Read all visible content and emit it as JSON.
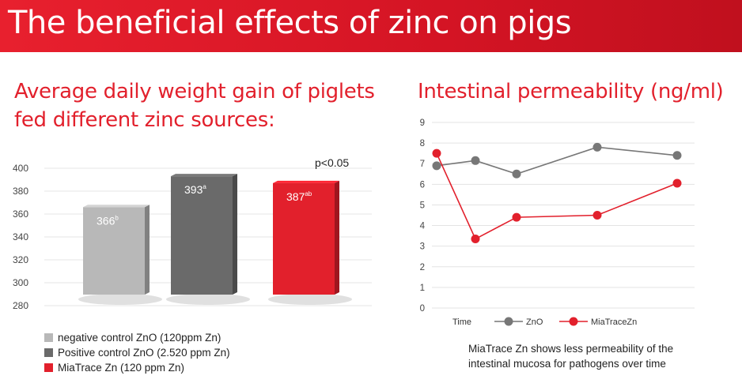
{
  "header": {
    "title": "The beneficial effects of zinc on pigs"
  },
  "colors": {
    "brand_red": "#e2202c",
    "light_gray": "#b8b8b8",
    "dark_gray": "#6a6a6a",
    "zno_line": "#777777",
    "miatrace_line": "#e2202c"
  },
  "chart_data": [
    {
      "type": "bar",
      "title": "Average daily weight gain of piglets fed different zinc sources:",
      "categories": [
        "negative control ZnO (120ppm Zn)",
        "Positive control ZnO (2.520 ppm Zn)",
        "MiaTrace Zn (120 ppm Zn)"
      ],
      "values": [
        366,
        393,
        387
      ],
      "data_labels": [
        {
          "value": "366",
          "sup": "b"
        },
        {
          "value": "393",
          "sup": "a"
        },
        {
          "value": "387",
          "sup": "ab"
        }
      ],
      "colors": [
        "#b8b8b8",
        "#6a6a6a",
        "#e2202c"
      ],
      "yticks": [
        280,
        300,
        320,
        340,
        360,
        380,
        400
      ],
      "ylim": [
        280,
        400
      ],
      "annotation": "p<0.05",
      "legend": "bottom-left",
      "grid": true
    },
    {
      "type": "line",
      "title": "Intestinal permeability (ng/ml)",
      "xlabel": "Time",
      "yticks": [
        0,
        1,
        2,
        3,
        4,
        5,
        6,
        7,
        8,
        9
      ],
      "ylim": [
        0,
        9
      ],
      "x": [
        1,
        2,
        3,
        4,
        5
      ],
      "series": [
        {
          "name": "ZnO",
          "values": [
            6.9,
            7.15,
            6.5,
            7.8,
            7.4
          ],
          "color": "#777777"
        },
        {
          "name": "MiaTraceZn",
          "values": [
            7.5,
            3.35,
            4.4,
            4.5,
            6.05
          ],
          "color": "#e2202c"
        }
      ],
      "legend": "bottom",
      "grid": true
    }
  ],
  "note": {
    "line1": "MiaTrace Zn shows less permeability of the",
    "line2": "intestinal mucosa for pathogens over time"
  }
}
